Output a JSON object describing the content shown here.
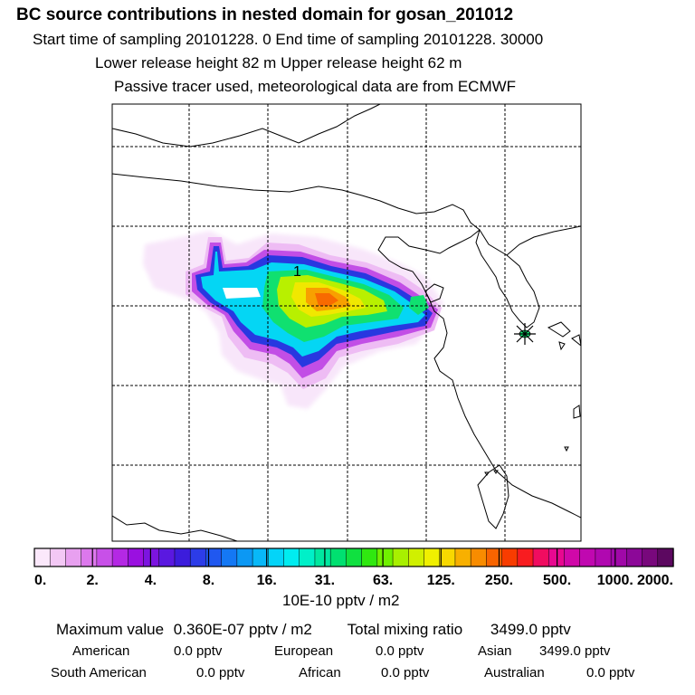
{
  "header": {
    "title": "BC  source contributions in nested domain for gosan_201012",
    "sampling_line": "Start time of sampling 20101228.     0     End time of sampling 20101228. 30000",
    "release_line": "Lower release height   82 m          Upper release height   62 m",
    "tracer_line": "Passive tracer used, meteorological data are from ECMWF"
  },
  "map": {
    "plume_label": "1",
    "receptor_marker": "asterisk-marker"
  },
  "colorbar": {
    "tick_labels": [
      "0.",
      "2.",
      "4.",
      "8.",
      "16.",
      "31.",
      "63.",
      "125.",
      "250.",
      "500.",
      "1000.",
      "2000."
    ],
    "colors": [
      "#fbe8fb",
      "#f3c8f5",
      "#e8a0f0",
      "#dc78ec",
      "#c850e8",
      "#b428e4",
      "#9a10e0",
      "#7c14e0",
      "#5a18e0",
      "#3c1cdc",
      "#2c3ce8",
      "#2058f0",
      "#1478f4",
      "#0c98f4",
      "#08b8f8",
      "#04d4f8",
      "#00ecf0",
      "#00f0c8",
      "#00e8a0",
      "#00e070",
      "#10e040",
      "#30e810",
      "#70f000",
      "#a8f000",
      "#d0f000",
      "#f0f000",
      "#f8d800",
      "#f8b000",
      "#f88c00",
      "#f86400",
      "#f83c00",
      "#f81c20",
      "#f00c60",
      "#e80890",
      "#d008a8",
      "#c008b0",
      "#b008b0",
      "#a008a8",
      "#8c0898",
      "#78087c",
      "#5c0860"
    ],
    "unit": "10E-10 pptv / m2"
  },
  "summary": {
    "max_label": "Maximum value",
    "max_value": "0.360E-07 pptv / m2",
    "total_label": "Total mixing ratio",
    "total_value": "3499.0 pptv",
    "regions": [
      {
        "name": "American",
        "value": "0.0 pptv"
      },
      {
        "name": "European",
        "value": "0.0 pptv"
      },
      {
        "name": "Asian",
        "value": "3499.0 pptv"
      },
      {
        "name": "South American",
        "value": "0.0 pptv"
      },
      {
        "name": "African",
        "value": "0.0 pptv"
      },
      {
        "name": "Australian",
        "value": "0.0 pptv"
      }
    ]
  }
}
